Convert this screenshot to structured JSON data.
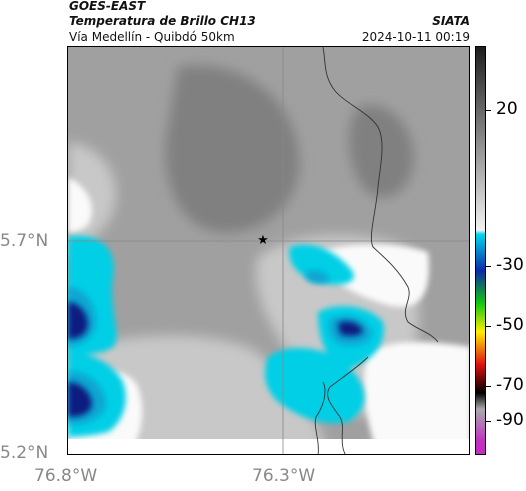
{
  "header": {
    "source": "GOES-EAST",
    "product": "Temperatura de Brillo CH13",
    "region": "Vía Medellín - Quibdó 50km",
    "organization": "SIATA",
    "timestamp": "2024-10-11 00:19"
  },
  "axes": {
    "lat_labels": [
      "5.7°N",
      "5.2°N"
    ],
    "lon_labels": [
      "76.8°W",
      "76.3°W"
    ]
  },
  "colorbar": {
    "labels": [
      "20",
      "-30",
      "-50",
      "-70",
      "-90"
    ],
    "colors": {
      "warm_dark": "#1e1e1e",
      "warm_light": "#f2f2f2",
      "cyan": "#00d7ee",
      "blue": "#0c2aa8",
      "green": "#10c810",
      "yellow": "#ffee00",
      "red": "#e01010",
      "black": "#000000",
      "gray": "#aaaaaa",
      "magenta": "#c030c0"
    }
  },
  "map": {
    "marker_icon": "star-icon",
    "cloud_colors": {
      "dark_gray": "#808080",
      "mid_gray": "#a0a0a0",
      "light_gray": "#c8c8c8",
      "pale_gray": "#e4e4e4",
      "white": "#fafafa",
      "cyan": "#06cfe6",
      "deep_cyan": "#0aa6d2",
      "blue": "#1c4fb0",
      "navy": "#0d1f80",
      "gridline": "#888888",
      "border": "#333333"
    }
  }
}
